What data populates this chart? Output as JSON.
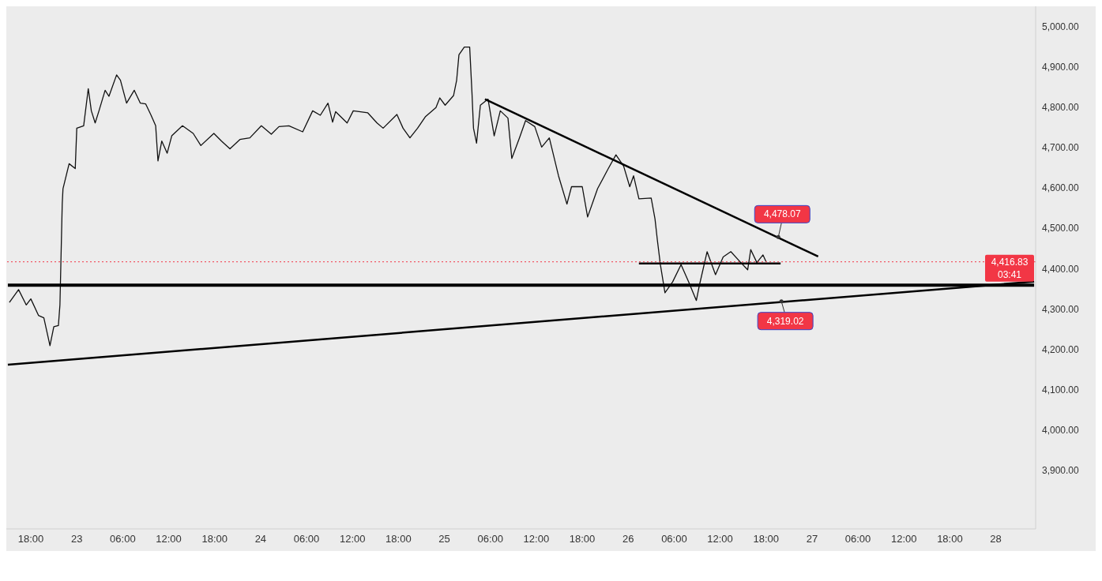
{
  "chart_data": {
    "type": "line",
    "xlim": [
      "--08-22T14:48",
      "--08-28T05:12"
    ],
    "ylim": [
      3755,
      5050
    ],
    "xticks": [
      {
        "value": "--08-22T18:00",
        "label": "18:00"
      },
      {
        "value": "--08-23",
        "label": "23"
      },
      {
        "value": "--08-23T06:00",
        "label": "06:00"
      },
      {
        "value": "--08-23T12:00",
        "label": "12:00"
      },
      {
        "value": "--08-23T18:00",
        "label": "18:00"
      },
      {
        "value": "--08-24",
        "label": "24"
      },
      {
        "value": "--08-24T06:00",
        "label": "06:00"
      },
      {
        "value": "--08-24T12:00",
        "label": "12:00"
      },
      {
        "value": "--08-24T18:00",
        "label": "18:00"
      },
      {
        "value": "--08-25",
        "label": "25"
      },
      {
        "value": "--08-25T06:00",
        "label": "06:00"
      },
      {
        "value": "--08-25T12:00",
        "label": "12:00"
      },
      {
        "value": "--08-25T18:00",
        "label": "18:00"
      },
      {
        "value": "--08-26",
        "label": "26"
      },
      {
        "value": "--08-26T06:00",
        "label": "06:00"
      },
      {
        "value": "--08-26T12:00",
        "label": "12:00"
      },
      {
        "value": "--08-26T18:00",
        "label": "18:00"
      },
      {
        "value": "--08-27",
        "label": "27"
      },
      {
        "value": "--08-27T06:00",
        "label": "06:00"
      },
      {
        "value": "--08-27T12:00",
        "label": "12:00"
      },
      {
        "value": "--08-27T18:00",
        "label": "18:00"
      },
      {
        "value": "--08-28",
        "label": "28"
      }
    ],
    "yticks": [
      {
        "value": 3900,
        "label": "3,900.00"
      },
      {
        "value": 4000,
        "label": "4,000.00"
      },
      {
        "value": 4100,
        "label": "4,100.00"
      },
      {
        "value": 4200,
        "label": "4,200.00"
      },
      {
        "value": 4300,
        "label": "4,300.00"
      },
      {
        "value": 4400,
        "label": "4,400.00"
      },
      {
        "value": 4500,
        "label": "4,500.00"
      },
      {
        "value": 4600,
        "label": "4,600.00"
      },
      {
        "value": 4700,
        "label": "4,700.00"
      },
      {
        "value": 4800,
        "label": "4,800.00"
      },
      {
        "value": 4900,
        "label": "4,900.00"
      },
      {
        "value": 5000,
        "label": "5,000.00"
      }
    ],
    "grid": false,
    "marker": "none",
    "series": [
      {
        "color": "#111111",
        "x": [
          "--08-22T15:12",
          "--08-22T16:24",
          "--08-22T17:24",
          "--08-22T18:00",
          "--08-22T19:00",
          "--08-22T19:42",
          "--08-22T20:30",
          "--08-22T21:00",
          "--08-22T21:36",
          "--08-22T21:48",
          "--08-22T22:06",
          "--08-22T22:12",
          "--08-22T23:00",
          "--08-22T23:48",
          "--08-23T00:00",
          "--08-23T00:54",
          "--08-23T01:30",
          "--08-23T01:54",
          "--08-23T02:24",
          "--08-23T02:54",
          "--08-23T03:42",
          "--08-23T04:12",
          "--08-23T05:12",
          "--08-23T05:42",
          "--08-23T06:30",
          "--08-23T07:30",
          "--08-23T08:18",
          "--08-23T09:00",
          "--08-23T09:42",
          "--08-23T10:18",
          "--08-23T10:36",
          "--08-23T11:06",
          "--08-23T11:48",
          "--08-23T12:24",
          "--08-23T13:48",
          "--08-23T15:12",
          "--08-23T16:12",
          "--08-23T17:54",
          "--08-23T18:54",
          "--08-23T20:00",
          "--08-23T21:18",
          "--08-23T22:36",
          "--08-24T00:06",
          "--08-24T01:24",
          "--08-24T02:24",
          "--08-24T03:42",
          "--08-24T05:30",
          "--08-24T06:48",
          "--08-24T07:48",
          "--08-24T08:48",
          "--08-24T09:24",
          "--08-24T09:48",
          "--08-24T11:18",
          "--08-24T12:06",
          "--08-24T14:00",
          "--08-24T15:12",
          "--08-24T16:00",
          "--08-24T17:48",
          "--08-24T18:36",
          "--08-24T19:30",
          "--08-24T20:30",
          "--08-24T21:30",
          "--08-24T22:54",
          "--08-24T23:24",
          "--08-25T00:06",
          "--08-25T01:12",
          "--08-25T01:36",
          "--08-25T01:54",
          "--08-25T02:36",
          "--08-25T03:18",
          "--08-25T03:36",
          "--08-25T03:48",
          "--08-25T04:12",
          "--08-25T04:42",
          "--08-25T05:42",
          "--08-25T06:30",
          "--08-25T07:18",
          "--08-25T08:18",
          "--08-25T08:48",
          "--08-25T09:48",
          "--08-25T10:36",
          "--08-25T11:48",
          "--08-25T12:42",
          "--08-25T13:42",
          "--08-25T14:54",
          "--08-25T16:00",
          "--08-25T16:36",
          "--08-25T18:00",
          "--08-25T18:42",
          "--08-25T20:00",
          "--08-25T21:24",
          "--08-25T22:24",
          "--08-25T23:24",
          "--08-26T00:12",
          "--08-26T00:42",
          "--08-26T01:24",
          "--08-26T03:00",
          "--08-26T03:30",
          "--08-26T03:48",
          "--08-26T04:12",
          "--08-26T04:48",
          "--08-26T05:48",
          "--08-26T06:54",
          "--08-26T07:54",
          "--08-26T08:54",
          "--08-26T09:18",
          "--08-26T10:18",
          "--08-26T11:24",
          "--08-26T12:24",
          "--08-26T13:24",
          "--08-26T14:42",
          "--08-26T15:36",
          "--08-26T16:00",
          "--08-26T16:48",
          "--08-26T17:36",
          "--08-26T18:00"
        ],
        "values": [
          4316,
          4348,
          4310,
          4325,
          4284,
          4278,
          4209,
          4256,
          4259,
          4310,
          4560,
          4598,
          4660,
          4648,
          4748,
          4754,
          4846,
          4791,
          4761,
          4791,
          4842,
          4827,
          4880,
          4867,
          4810,
          4842,
          4810,
          4808,
          4780,
          4754,
          4667,
          4716,
          4686,
          4729,
          4754,
          4735,
          4705,
          4735,
          4716,
          4697,
          4720,
          4724,
          4754,
          4733,
          4752,
          4754,
          4739,
          4791,
          4780,
          4810,
          4763,
          4789,
          4761,
          4791,
          4786,
          4761,
          4748,
          4782,
          4748,
          4724,
          4748,
          4776,
          4799,
          4823,
          4805,
          4829,
          4867,
          4930,
          4949,
          4949,
          4836,
          4748,
          4711,
          4805,
          4820,
          4729,
          4791,
          4773,
          4673,
          4724,
          4767,
          4752,
          4701,
          4724,
          4630,
          4560,
          4603,
          4603,
          4528,
          4598,
          4648,
          4682,
          4654,
          4603,
          4630,
          4573,
          4575,
          4523,
          4472,
          4410,
          4340,
          4367,
          4410,
          4367,
          4321,
          4359,
          4442,
          4385,
          4429,
          4442,
          4415,
          4397,
          4447,
          4415,
          4434,
          4417
        ]
      },
      {
        "color": "#000000",
        "x": [
          "--08-25T05:18",
          "--08-27T00:48"
        ],
        "values": [
          4820,
          4430
        ]
      },
      {
        "color": "#000000",
        "x": [
          "--08-22T15:00",
          "--08-28T05:00"
        ],
        "values": [
          4359,
          4359
        ]
      },
      {
        "color": "#000000",
        "x": [
          "--08-22T15:00",
          "--08-28T05:00"
        ],
        "values": [
          4162,
          4368
        ]
      },
      {
        "color": "#000000",
        "x": [
          "--08-26T01:24",
          "--08-26T19:54"
        ],
        "values": [
          4413,
          4413
        ]
      }
    ],
    "ref_lines": [
      {
        "axis": "y",
        "value": 4416.83,
        "label": "4,416.83",
        "color": "#f23645",
        "line_style": "dotted"
      }
    ],
    "annotations": [
      {
        "text": "4,478.07",
        "x": "--08-26T19:36",
        "y": 4478.07
      },
      {
        "text": "4,319.02",
        "x": "--08-26T20:00",
        "y": 4319.02
      },
      "03:41"
    ]
  }
}
